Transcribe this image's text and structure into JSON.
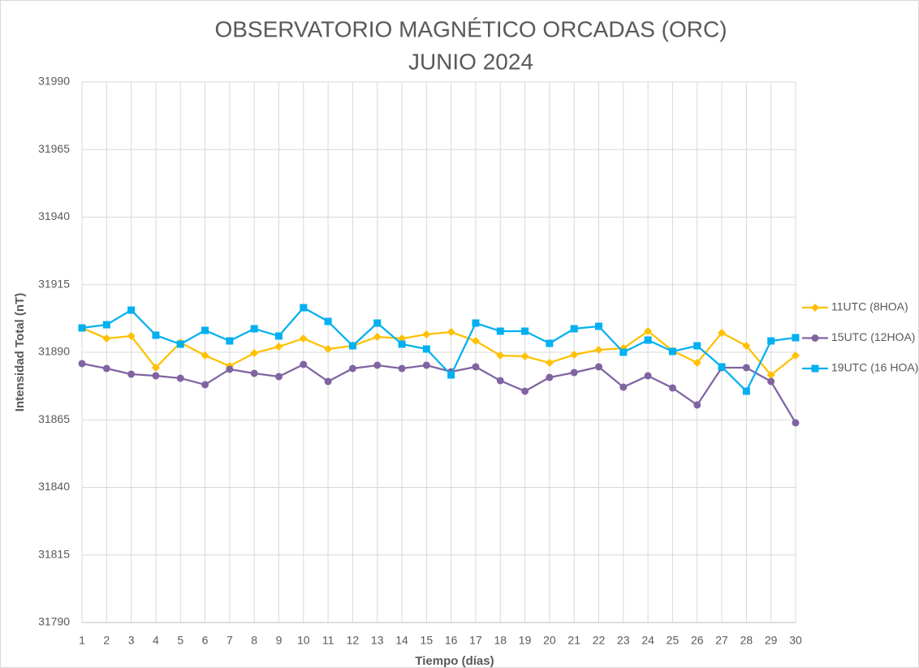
{
  "chart_data": {
    "type": "line",
    "title": [
      "OBSERVATORIO MAGNÉTICO ORCADAS (ORC)",
      "JUNIO 2024"
    ],
    "x_label": "Tiempo (días)",
    "y_label": "Intensidad Total (nT)",
    "x": [
      1,
      2,
      3,
      4,
      5,
      6,
      7,
      8,
      9,
      10,
      11,
      12,
      13,
      14,
      15,
      16,
      17,
      18,
      19,
      20,
      21,
      22,
      23,
      24,
      25,
      26,
      27,
      28,
      29,
      30
    ],
    "xlim": [
      1,
      30
    ],
    "xticks": [
      1,
      2,
      3,
      4,
      5,
      6,
      7,
      8,
      9,
      10,
      11,
      12,
      13,
      14,
      15,
      16,
      17,
      18,
      19,
      20,
      21,
      22,
      23,
      24,
      25,
      26,
      27,
      28,
      29,
      30
    ],
    "ylim": [
      31790,
      31990
    ],
    "yticks": [
      31790,
      31815,
      31840,
      31865,
      31890,
      31915,
      31940,
      31965,
      31990
    ],
    "grid": true,
    "legend": "right",
    "series": [
      {
        "name": "11UTC (8HOA)",
        "color": "#FFC000",
        "marker": "diamond",
        "values": [
          31899,
          31895.1,
          31896,
          31884.3,
          31893.6,
          31888.8,
          31884.9,
          31889.7,
          31892.1,
          31895.1,
          31891.2,
          31892.4,
          31895.7,
          31895.1,
          31896.6,
          31897.5,
          31894.2,
          31888.8,
          31888.5,
          31886.1,
          31889.1,
          31890.9,
          31891.5,
          31897.8,
          31890.6,
          31886.1,
          31897.2,
          31892.4,
          31881.6,
          31888.8
        ]
      },
      {
        "name": "15UTC (12HOA)",
        "color": "#8064A2",
        "marker": "circle",
        "values": [
          31885.8,
          31884,
          31881.9,
          31881.3,
          31880.4,
          31878,
          31883.7,
          31882.2,
          31881,
          31885.5,
          31879.2,
          31884,
          31885.2,
          31884,
          31885.2,
          31882.8,
          31884.6,
          31879.5,
          31875.6,
          31880.7,
          31882.5,
          31884.6,
          31877.1,
          31881.3,
          31876.8,
          31870.5,
          31884.3,
          31884.3,
          31879.2,
          31863.9
        ]
      },
      {
        "name": "19UTC (16 HOA)",
        "color": "#00B0F0",
        "marker": "square",
        "values": [
          31899,
          31900.2,
          31905.6,
          31896.3,
          31893,
          31898.1,
          31894.2,
          31898.7,
          31896,
          31906.5,
          31901.4,
          31892.4,
          31900.8,
          31893,
          31891.2,
          31881.6,
          31900.8,
          31897.8,
          31897.8,
          31893.3,
          31898.7,
          31899.6,
          31890,
          31894.5,
          31890.3,
          31892.4,
          31884.6,
          31875.6,
          31894.2,
          31895.4
        ]
      }
    ]
  }
}
